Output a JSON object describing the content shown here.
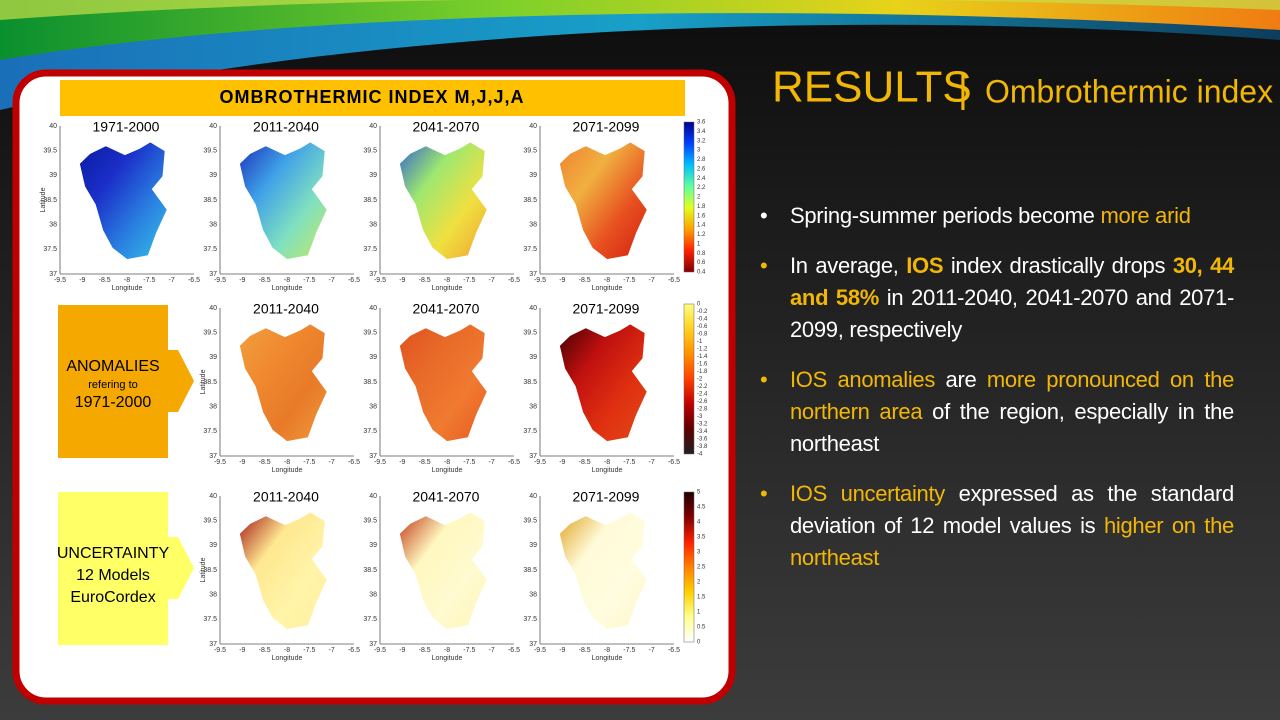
{
  "slide": {
    "title": "RESULTS",
    "divider": "|",
    "subtitle": "Ombrothermic index",
    "bullets": [
      [
        {
          "text": "Spring-summer periods become ",
          "style": "normal"
        },
        {
          "text": "more arid",
          "style": "highlight"
        }
      ],
      [
        {
          "text": "In average, ",
          "style": "normal"
        },
        {
          "text": "IOS",
          "style": "bold"
        },
        {
          "text": " index drastically drops ",
          "style": "normal"
        },
        {
          "text": "30, 44 and 58%",
          "style": "bold"
        },
        {
          "text": " in 2011-2040, 2041-2070 and 2071-2099, respectively",
          "style": "normal"
        }
      ],
      [
        {
          "text": "IOS anomalies",
          "style": "highlight"
        },
        {
          "text": " are ",
          "style": "normal"
        },
        {
          "text": "more pronounced on the northern area",
          "style": "highlight"
        },
        {
          "text": " of the region, especially in the northeast",
          "style": "normal"
        }
      ],
      [
        {
          "text": "IOS uncertainty",
          "style": "highlight"
        },
        {
          "text": " expressed as the standard deviation of 12 model values is ",
          "style": "normal"
        },
        {
          "text": "higher on the northeast",
          "style": "highlight"
        }
      ]
    ]
  },
  "figure": {
    "banner": "OMBROTHERMIC INDEX M,J,J,A",
    "axes": {
      "y_label": "Latitude",
      "x_label": "Longitude",
      "yticks": [
        "40",
        "39.5",
        "39",
        "38.5",
        "38",
        "37.5",
        "37"
      ],
      "xticks": [
        "-9.5",
        "-9",
        "-8.5",
        "-8",
        "-7.5",
        "-7",
        "-6.5"
      ]
    },
    "rows": [
      {
        "panels": [
          "1971-2000",
          "2011-2040",
          "2041-2070",
          "2071-2099"
        ],
        "colorbar": [
          "3.6",
          "3.4",
          "3.2",
          "3",
          "2.8",
          "2.6",
          "2.4",
          "2.2",
          "2",
          "1.8",
          "1.6",
          "1.4",
          "1.2",
          "1",
          "0.8",
          "0.6",
          "0.4"
        ]
      },
      {
        "label_lines": [
          "ANOMALIES",
          "refering to",
          "1971-2000"
        ],
        "panels": [
          "2011-2040",
          "2041-2070",
          "2071-2099"
        ],
        "colorbar": [
          "0",
          "-0.2",
          "-0.4",
          "-0.6",
          "-0.8",
          "-1",
          "-1.2",
          "-1.4",
          "-1.6",
          "-1.8",
          "-2",
          "-2.2",
          "-2.4",
          "-2.6",
          "-2.8",
          "-3",
          "-3.2",
          "-3.4",
          "-3.6",
          "-3.8",
          "-4"
        ]
      },
      {
        "label_lines": [
          "UNCERTAINTY",
          "12 Models",
          "EuroCordex"
        ],
        "panels": [
          "2011-2040",
          "2041-2070",
          "2071-2099"
        ],
        "colorbar": [
          "5",
          "4.5",
          "4",
          "3.5",
          "3",
          "2.5",
          "2",
          "1.5",
          "1",
          "0.5",
          "0"
        ]
      }
    ]
  }
}
